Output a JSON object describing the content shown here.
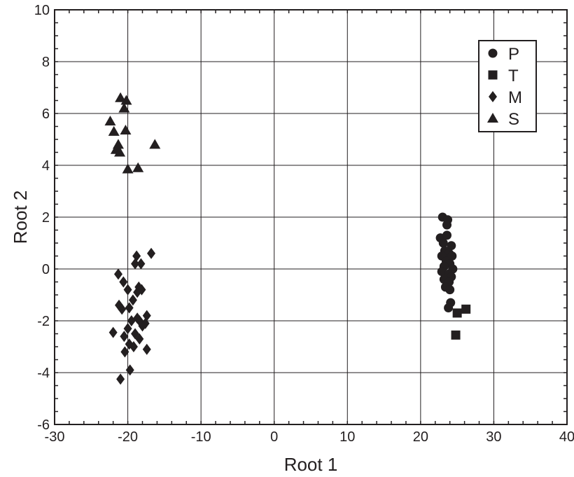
{
  "chart_data": {
    "type": "scatter",
    "xlabel": "Root 1",
    "ylabel": "Root 2",
    "xlim": [
      -30,
      40
    ],
    "ylim": [
      -6,
      10
    ],
    "xticks": [
      "-30",
      "-20",
      "-10",
      "0",
      "10",
      "20",
      "30",
      "40"
    ],
    "yticks": [
      "-6",
      "-4",
      "-2",
      "0",
      "2",
      "4",
      "6",
      "8",
      "10"
    ],
    "grid": true,
    "legend_position": "top-right",
    "color": "#231f20",
    "series": [
      {
        "name": "P",
        "marker": "circle",
        "points": [
          [
            23.0,
            2.0
          ],
          [
            23.7,
            1.9
          ],
          [
            23.6,
            1.7
          ],
          [
            22.7,
            1.2
          ],
          [
            23.6,
            1.3
          ],
          [
            23.1,
            1.0
          ],
          [
            24.2,
            0.9
          ],
          [
            23.3,
            0.7
          ],
          [
            23.9,
            0.6
          ],
          [
            22.9,
            0.5
          ],
          [
            24.3,
            0.5
          ],
          [
            23.5,
            0.3
          ],
          [
            24.0,
            0.2
          ],
          [
            23.2,
            0.1
          ],
          [
            24.4,
            0.0
          ],
          [
            22.9,
            -0.1
          ],
          [
            23.8,
            -0.2
          ],
          [
            24.2,
            -0.3
          ],
          [
            23.2,
            -0.4
          ],
          [
            23.9,
            -0.5
          ],
          [
            23.4,
            -0.7
          ],
          [
            24.0,
            -0.8
          ],
          [
            24.1,
            -1.3
          ],
          [
            23.8,
            -1.5
          ]
        ]
      },
      {
        "name": "T",
        "marker": "square",
        "points": [
          [
            26.2,
            -1.55
          ],
          [
            25.0,
            -1.7
          ],
          [
            24.8,
            -2.55
          ]
        ]
      },
      {
        "name": "M",
        "marker": "diamond",
        "points": [
          [
            -16.8,
            0.6
          ],
          [
            -18.8,
            0.5
          ],
          [
            -19.0,
            0.2
          ],
          [
            -18.2,
            0.2
          ],
          [
            -21.3,
            -0.2
          ],
          [
            -20.6,
            -0.5
          ],
          [
            -18.5,
            -0.7
          ],
          [
            -20.0,
            -0.8
          ],
          [
            -18.7,
            -0.9
          ],
          [
            -18.1,
            -0.8
          ],
          [
            -19.3,
            -1.2
          ],
          [
            -21.2,
            -1.4
          ],
          [
            -19.8,
            -1.5
          ],
          [
            -20.8,
            -1.55
          ],
          [
            -17.4,
            -1.8
          ],
          [
            -18.7,
            -1.9
          ],
          [
            -19.5,
            -2.0
          ],
          [
            -17.6,
            -2.1
          ],
          [
            -18.0,
            -2.2
          ],
          [
            -18.4,
            -2.0
          ],
          [
            -20.0,
            -2.3
          ],
          [
            -22.0,
            -2.45
          ],
          [
            -19.0,
            -2.5
          ],
          [
            -20.5,
            -2.6
          ],
          [
            -18.4,
            -2.7
          ],
          [
            -19.8,
            -2.9
          ],
          [
            -19.2,
            -3.0
          ],
          [
            -17.4,
            -3.1
          ],
          [
            -20.4,
            -3.2
          ],
          [
            -19.7,
            -3.9
          ],
          [
            -21.0,
            -4.25
          ]
        ]
      },
      {
        "name": "S",
        "marker": "triangle",
        "points": [
          [
            -21.0,
            6.6
          ],
          [
            -20.2,
            6.5
          ],
          [
            -20.5,
            6.2
          ],
          [
            -22.4,
            5.7
          ],
          [
            -20.3,
            5.35
          ],
          [
            -21.9,
            5.3
          ],
          [
            -21.3,
            4.8
          ],
          [
            -16.3,
            4.8
          ],
          [
            -21.6,
            4.6
          ],
          [
            -21.1,
            4.5
          ],
          [
            -20.0,
            3.85
          ],
          [
            -18.6,
            3.9
          ]
        ]
      }
    ]
  }
}
